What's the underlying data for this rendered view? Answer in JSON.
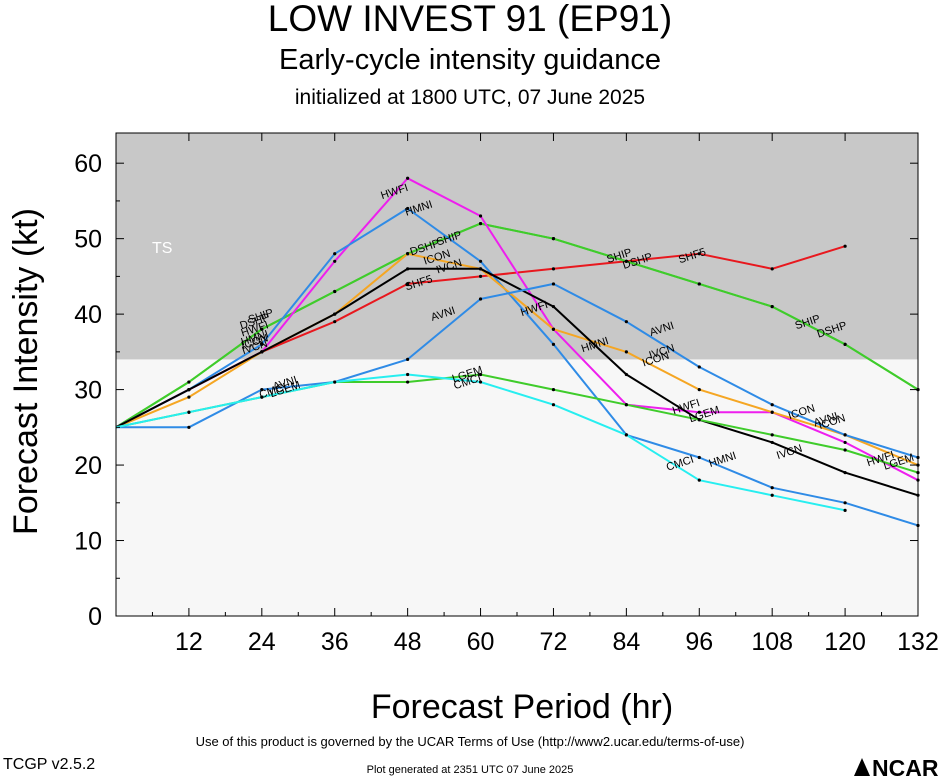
{
  "header": {
    "title": "LOW INVEST 91 (EP91)",
    "subtitle": "Early-cycle intensity guidance",
    "init": "initialized at 1800 UTC, 07 June 2025"
  },
  "footer": {
    "terms": "Use of this product is governed by the UCAR Terms of Use (http://www2.ucar.edu/terms-of-use)",
    "generated": "Plot generated at 2351 UTC   07 June 2025",
    "version": "TCGP v2.5.2",
    "logo_text": "NCAR"
  },
  "chart_data": {
    "type": "line",
    "title": "LOW INVEST 91 (EP91)",
    "xlabel": "Forecast Period (hr)",
    "ylabel": "Forecast Intensity (kt)",
    "xlim": [
      0,
      132
    ],
    "ylim": [
      0,
      64
    ],
    "xticks": [
      12,
      24,
      36,
      48,
      60,
      72,
      84,
      96,
      108,
      120,
      132
    ],
    "yticks": [
      0,
      10,
      20,
      30,
      40,
      50,
      60
    ],
    "shaded_band": {
      "label": "TS",
      "from": 34,
      "to": 64,
      "color": "#c8c8c8"
    },
    "series": [
      {
        "name": "SHF5",
        "color": "#e8181e",
        "points": [
          [
            0,
            25
          ],
          [
            12,
            30
          ],
          [
            24,
            35
          ],
          [
            36,
            39
          ],
          [
            48,
            44
          ],
          [
            60,
            45
          ],
          [
            72,
            46
          ],
          [
            84,
            47
          ],
          [
            96,
            48
          ],
          [
            108,
            46
          ],
          [
            120,
            49
          ]
        ]
      },
      {
        "name": "SHIP",
        "color": "#3fcc2b",
        "points": [
          [
            0,
            25
          ],
          [
            12,
            31
          ],
          [
            24,
            38
          ],
          [
            36,
            43
          ],
          [
            48,
            48
          ],
          [
            60,
            52
          ],
          [
            72,
            50
          ],
          [
            84,
            47
          ],
          [
            96,
            44
          ],
          [
            108,
            41
          ],
          [
            120,
            36
          ],
          [
            132,
            30
          ]
        ]
      },
      {
        "name": "DSHP",
        "color": "#3fcc2b",
        "points": [
          [
            0,
            25
          ],
          [
            12,
            31
          ],
          [
            24,
            38
          ],
          [
            36,
            43
          ],
          [
            48,
            48
          ],
          [
            60,
            52
          ],
          [
            72,
            50
          ],
          [
            84,
            47
          ],
          [
            96,
            44
          ],
          [
            108,
            41
          ],
          [
            120,
            36
          ],
          [
            132,
            30
          ]
        ]
      },
      {
        "name": "HWFI",
        "color": "#ee1fee",
        "points": [
          [
            0,
            25
          ],
          [
            12,
            30
          ],
          [
            24,
            35
          ],
          [
            36,
            47
          ],
          [
            48,
            58
          ],
          [
            60,
            53
          ],
          [
            72,
            38
          ],
          [
            84,
            28
          ],
          [
            96,
            27
          ],
          [
            108,
            27
          ],
          [
            120,
            23
          ],
          [
            132,
            18
          ]
        ]
      },
      {
        "name": "HMNI",
        "color": "#2f8be6",
        "points": [
          [
            0,
            25
          ],
          [
            12,
            30
          ],
          [
            24,
            36
          ],
          [
            36,
            48
          ],
          [
            48,
            54
          ],
          [
            60,
            47
          ],
          [
            72,
            36
          ],
          [
            84,
            24
          ],
          [
            96,
            21
          ],
          [
            108,
            17
          ],
          [
            120,
            15
          ],
          [
            132,
            12
          ]
        ]
      },
      {
        "name": "ICON",
        "color": "#f5a623",
        "points": [
          [
            0,
            25
          ],
          [
            12,
            29
          ],
          [
            24,
            35
          ],
          [
            36,
            40
          ],
          [
            48,
            48
          ],
          [
            60,
            46
          ],
          [
            72,
            38
          ],
          [
            84,
            35
          ],
          [
            96,
            30
          ],
          [
            108,
            27
          ],
          [
            120,
            24
          ],
          [
            132,
            20
          ]
        ]
      },
      {
        "name": "IVCN",
        "color": "#000000",
        "points": [
          [
            0,
            25
          ],
          [
            12,
            30
          ],
          [
            24,
            35
          ],
          [
            36,
            40
          ],
          [
            48,
            46
          ],
          [
            60,
            46
          ],
          [
            72,
            41
          ],
          [
            84,
            32
          ],
          [
            96,
            26
          ],
          [
            108,
            23
          ],
          [
            120,
            19
          ],
          [
            132,
            16
          ]
        ]
      },
      {
        "name": "AVNI",
        "color": "#2f8be6",
        "points": [
          [
            0,
            25
          ],
          [
            12,
            25
          ],
          [
            24,
            30
          ],
          [
            36,
            31
          ],
          [
            48,
            34
          ],
          [
            60,
            42
          ],
          [
            72,
            44
          ],
          [
            84,
            39
          ],
          [
            96,
            33
          ],
          [
            108,
            28
          ],
          [
            120,
            24
          ],
          [
            132,
            21
          ]
        ]
      },
      {
        "name": "LGEM",
        "color": "#3fcc2b",
        "points": [
          [
            0,
            25
          ],
          [
            12,
            27
          ],
          [
            24,
            29
          ],
          [
            36,
            31
          ],
          [
            48,
            31
          ],
          [
            60,
            32
          ],
          [
            72,
            30
          ],
          [
            84,
            28
          ],
          [
            96,
            26
          ],
          [
            108,
            24
          ],
          [
            120,
            22
          ],
          [
            132,
            19
          ]
        ]
      },
      {
        "name": "CMCI",
        "color": "#27eef0",
        "points": [
          [
            0,
            25
          ],
          [
            12,
            27
          ],
          [
            24,
            29
          ],
          [
            36,
            31
          ],
          [
            48,
            32
          ],
          [
            60,
            31
          ],
          [
            72,
            28
          ],
          [
            84,
            24
          ],
          [
            96,
            18
          ],
          [
            108,
            16
          ],
          [
            120,
            14
          ]
        ]
      }
    ],
    "labels": [
      {
        "text": "SHF5",
        "x": 50,
        "y": 43.7,
        "series": "SHF5"
      },
      {
        "text": "SHF5",
        "x": 95,
        "y": 47.3,
        "series": "SHF5"
      },
      {
        "text": "DSHP",
        "x": 51,
        "y": 48.4,
        "series": "SHIP"
      },
      {
        "text": "SHIP",
        "x": 55,
        "y": 49.6,
        "series": "SHIP"
      },
      {
        "text": "DSHP",
        "x": 86,
        "y": 46.6,
        "series": "SHIP"
      },
      {
        "text": "SHIP",
        "x": 83,
        "y": 47.3,
        "series": "SHIP"
      },
      {
        "text": "SHIP",
        "x": 114,
        "y": 38.5,
        "series": "SHIP"
      },
      {
        "text": "DSHP",
        "x": 118,
        "y": 37.5,
        "series": "SHIP"
      },
      {
        "text": "DSHP",
        "x": 23,
        "y": 38.6,
        "series": "SHIP"
      },
      {
        "text": "SHIP",
        "x": 24,
        "y": 39.3,
        "series": "SHIP"
      },
      {
        "text": "HWFI",
        "x": 46,
        "y": 55.8,
        "series": "HWFI"
      },
      {
        "text": "HWFI",
        "x": 69,
        "y": 40.3,
        "series": "HWFI"
      },
      {
        "text": "HWFI",
        "x": 94,
        "y": 27.3,
        "series": "HWFI"
      },
      {
        "text": "HWFI",
        "x": 23,
        "y": 37.6,
        "series": "HWFI"
      },
      {
        "text": "HMNI",
        "x": 50,
        "y": 53.6,
        "series": "HMNI"
      },
      {
        "text": "HMNI",
        "x": 79,
        "y": 35.5,
        "series": "HMNI"
      },
      {
        "text": "HMNI",
        "x": 100,
        "y": 20.3,
        "series": "HMNI"
      },
      {
        "text": "HMNI",
        "x": 23,
        "y": 36.4,
        "series": "HMNI"
      },
      {
        "text": "ICON",
        "x": 53,
        "y": 47.1,
        "series": "ICON"
      },
      {
        "text": "ICON",
        "x": 89,
        "y": 33.6,
        "series": "ICON"
      },
      {
        "text": "ICON",
        "x": 113,
        "y": 26.6,
        "series": "ICON"
      },
      {
        "text": "ICON",
        "x": 23,
        "y": 35.9,
        "series": "ICON"
      },
      {
        "text": "IVCN",
        "x": 55,
        "y": 45.9,
        "series": "IVCN"
      },
      {
        "text": "IVCN",
        "x": 90,
        "y": 34.6,
        "series": "IVCN"
      },
      {
        "text": "IVCN",
        "x": 111,
        "y": 21.3,
        "series": "IVCN"
      },
      {
        "text": "IVCN",
        "x": 23,
        "y": 35.2,
        "series": "IVCN"
      },
      {
        "text": "AVNI",
        "x": 54,
        "y": 39.6,
        "series": "AVNI"
      },
      {
        "text": "AVNI",
        "x": 90,
        "y": 37.6,
        "series": "AVNI"
      },
      {
        "text": "AVNI",
        "x": 117,
        "y": 25.6,
        "series": "AVNI"
      },
      {
        "text": "AVNI",
        "x": 28,
        "y": 30.4,
        "series": "AVNI"
      },
      {
        "text": "LGEM",
        "x": 58,
        "y": 31.6,
        "series": "LGEM"
      },
      {
        "text": "LGEM",
        "x": 97,
        "y": 26.3,
        "series": "LGEM"
      },
      {
        "text": "LGEM",
        "x": 129,
        "y": 20.0,
        "series": "LGEM"
      },
      {
        "text": "LGEM",
        "x": 28,
        "y": 29.6,
        "series": "LGEM"
      },
      {
        "text": "CMCI",
        "x": 58,
        "y": 30.6,
        "series": "CMCI"
      },
      {
        "text": "CMCI",
        "x": 93,
        "y": 19.8,
        "series": "CMCI"
      },
      {
        "text": "CMCI",
        "x": 26,
        "y": 29.4,
        "series": "CMCI"
      },
      {
        "text": "HWFI",
        "x": 126,
        "y": 20.4,
        "series": "HWFI"
      },
      {
        "text": "ICON",
        "x": 118,
        "y": 25.3,
        "series": "ICON"
      }
    ],
    "grid": false,
    "legend": "none"
  }
}
